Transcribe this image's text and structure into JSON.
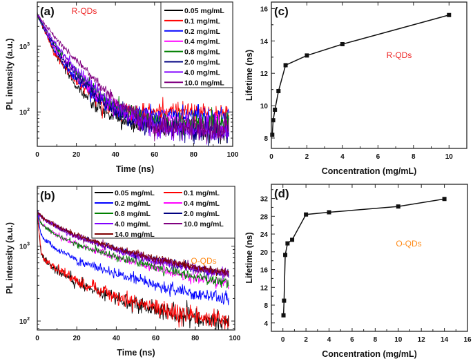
{
  "chart_data": [
    {
      "panel": "(a)",
      "type": "line",
      "annotation": {
        "text": "R-QDs",
        "color": "#ee2222"
      },
      "xlabel": "Time (ns)",
      "ylabel": "PL intensity (a.u.)",
      "xlim": [
        0,
        100
      ],
      "ylim": [
        30,
        4700
      ],
      "yscale": "log",
      "xticks": [
        "0",
        "20",
        "40",
        "60",
        "80",
        "100"
      ],
      "yticks": [
        {
          "base": "10",
          "exp": "2",
          "value": 100
        },
        {
          "base": "10",
          "exp": "3",
          "value": 1000
        }
      ],
      "legend_placement": "top-right",
      "legend_columns": 1,
      "x": [
        0,
        10,
        20,
        30,
        40,
        50,
        60,
        70,
        80,
        90,
        98
      ],
      "series": [
        {
          "name": "0.05 mg/mL",
          "color": "#000000",
          "values": [
            3000,
            700,
            250,
            120,
            80,
            65,
            60,
            60,
            60,
            55,
            55
          ]
        },
        {
          "name": "0.1   mg/mL",
          "color": "#ff0000",
          "values": [
            3000,
            700,
            300,
            160,
            110,
            100,
            100,
            105,
            100,
            95,
            95
          ]
        },
        {
          "name": "0.2   mg/mL",
          "color": "#0000ff",
          "values": [
            3000,
            750,
            320,
            170,
            110,
            95,
            90,
            90,
            90,
            85,
            85
          ]
        },
        {
          "name": "0.4   mg/mL",
          "color": "#ff00ff",
          "values": [
            3000,
            850,
            380,
            190,
            110,
            80,
            70,
            65,
            65,
            65,
            65
          ]
        },
        {
          "name": "0.8   mg/mL",
          "color": "#008000",
          "values": [
            3000,
            950,
            420,
            210,
            120,
            85,
            70,
            65,
            65,
            65,
            65
          ]
        },
        {
          "name": "2.0   mg/mL",
          "color": "#000080",
          "values": [
            3000,
            850,
            370,
            180,
            105,
            75,
            60,
            55,
            55,
            50,
            50
          ]
        },
        {
          "name": "4.0   mg/mL",
          "color": "#8000ff",
          "values": [
            3000,
            1000,
            450,
            220,
            120,
            80,
            60,
            55,
            55,
            50,
            50
          ]
        },
        {
          "name": "10.0 mg/mL",
          "color": "#800080",
          "values": [
            3000,
            1250,
            600,
            300,
            150,
            90,
            65,
            60,
            60,
            55,
            55
          ]
        }
      ]
    },
    {
      "panel": "(c)",
      "type": "line",
      "annotation": {
        "text": "R-QDs",
        "color": "#ee2222"
      },
      "xlabel": "Concentration (mg/mL)",
      "ylabel": "Lifetime (ns)",
      "xlim": [
        0,
        11
      ],
      "ylim": [
        7.36,
        16.4
      ],
      "xticks": [
        "0",
        "2",
        "4",
        "6",
        "8",
        "10"
      ],
      "yticks": [
        "8",
        "10",
        "12",
        "14",
        "16"
      ],
      "x": [
        0.05,
        0.1,
        0.2,
        0.4,
        0.8,
        2,
        4,
        10
      ],
      "values": [
        8.2,
        9.1,
        9.75,
        10.9,
        12.5,
        13.1,
        13.8,
        15.6
      ]
    },
    {
      "panel": "(b)",
      "type": "line",
      "annotation": {
        "text": "O-QDs",
        "color": "#ff8c1a"
      },
      "xlabel": "Time (ns)",
      "ylabel": "PL intensity (a.u.)",
      "xlim": [
        0,
        100
      ],
      "ylim": [
        76,
        6300
      ],
      "yscale": "log",
      "xticks": [
        "0",
        "20",
        "40",
        "60",
        "80",
        "100"
      ],
      "yticks": [
        {
          "base": "10",
          "exp": "2",
          "value": 100
        },
        {
          "base": "10",
          "exp": "3",
          "value": 1000
        }
      ],
      "legend_placement": "top-right",
      "legend_columns": 2,
      "x": [
        0,
        2,
        5,
        10,
        20,
        40,
        60,
        80,
        97
      ],
      "series": [
        {
          "name": "0.05 mg/mL",
          "color": "#000000",
          "values": [
            2800,
            800,
            600,
            480,
            330,
            200,
            140,
            110,
            95
          ]
        },
        {
          "name": "0.1   mg/mL",
          "color": "#ff0000",
          "values": [
            2800,
            820,
            620,
            500,
            340,
            210,
            150,
            115,
            100
          ]
        },
        {
          "name": "0.2   mg/mL",
          "color": "#0000ff",
          "values": [
            2800,
            1400,
            1150,
            900,
            650,
            420,
            300,
            230,
            190
          ]
        },
        {
          "name": "0.4   mg/mL",
          "color": "#ff00ff",
          "values": [
            2800,
            2000,
            1700,
            1400,
            1050,
            700,
            500,
            380,
            300
          ]
        },
        {
          "name": "0.8   mg/mL",
          "color": "#008000",
          "values": [
            2800,
            2000,
            1700,
            1400,
            1050,
            720,
            520,
            390,
            310
          ]
        },
        {
          "name": "2.0   mg/mL",
          "color": "#000080",
          "values": [
            2800,
            2500,
            2200,
            1800,
            1350,
            900,
            650,
            500,
            420
          ]
        },
        {
          "name": "4.0   mg/mL",
          "color": "#8000ff",
          "values": [
            2800,
            2450,
            2150,
            1780,
            1330,
            880,
            640,
            490,
            410
          ]
        },
        {
          "name": "10.0 mg/mL",
          "color": "#800080",
          "values": [
            2800,
            2500,
            2200,
            1800,
            1350,
            910,
            660,
            510,
            420
          ]
        },
        {
          "name": "14.0 mg/mL",
          "color": "#800000",
          "values": [
            2800,
            2550,
            2250,
            1850,
            1400,
            940,
            690,
            530,
            440
          ]
        }
      ]
    },
    {
      "panel": "(d)",
      "type": "line",
      "annotation": {
        "text": "O-QDs",
        "color": "#ff8c1a"
      },
      "xlabel": "Concentration (mg/mL)",
      "ylabel": "Lifetime (ns)",
      "xlim": [
        -1,
        16
      ],
      "ylim": [
        2.1,
        35.2
      ],
      "xticks": [
        "0",
        "2",
        "4",
        "6",
        "8",
        "10",
        "12",
        "14",
        "16"
      ],
      "yticks": [
        "4",
        "8",
        "12",
        "16",
        "20",
        "24",
        "28",
        "32"
      ],
      "x": [
        0.05,
        0.1,
        0.2,
        0.4,
        0.8,
        2,
        4,
        10,
        14
      ],
      "values": [
        5.7,
        9,
        19.3,
        21.9,
        22.7,
        28.4,
        28.9,
        30.2,
        31.9
      ]
    }
  ]
}
